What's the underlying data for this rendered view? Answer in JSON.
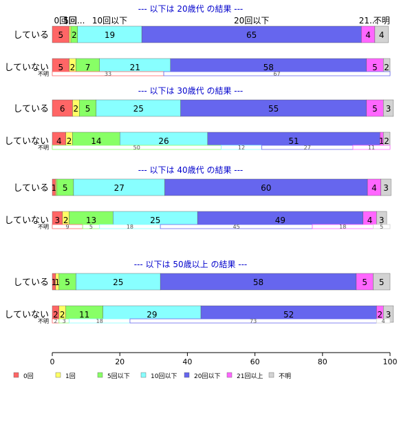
{
  "chart_data": {
    "type": "bar",
    "orientation": "horizontal",
    "stacked": true,
    "xlim": [
      0,
      100
    ],
    "x_ticks": [
      0,
      20,
      40,
      60,
      80,
      100
    ],
    "title": "",
    "xlabel": "",
    "ylabel": "",
    "categories": [
      "0回",
      "1回",
      "5回以下",
      "10回以下",
      "20回以下",
      "21回以上",
      "不明"
    ],
    "colors": [
      "#ff6666",
      "#ffff66",
      "#88ff66",
      "#88ffff",
      "#6666ee",
      "#ff66ff",
      "#d3d3d3"
    ],
    "legend_position": "bottom",
    "top_labels": [
      "0回",
      "1回",
      "5回...",
      "10回以下",
      "20回以下",
      "21...",
      "不明"
    ],
    "panels": [
      {
        "title": "--- 以下は 20歳代 の結果 ---",
        "rows": [
          {
            "label": "している",
            "values": [
              5,
              0.5,
              2,
              19,
              65,
              4,
              4
            ],
            "labels": [
              "5",
              "",
              "2",
              "19",
              "65",
              "4",
              "4"
            ]
          },
          {
            "label": "していない",
            "values": [
              5,
              2,
              7,
              21,
              58,
              5,
              2
            ],
            "labels": [
              "5",
              "2",
              "7",
              "21",
              "58",
              "5",
              "2"
            ]
          }
        ],
        "unknown": {
          "label": "不明",
          "values": [
            33,
            67
          ],
          "colors": [
            "#ff6666",
            "#6666ee"
          ],
          "labels": [
            "33",
            "67"
          ]
        }
      },
      {
        "title": "--- 以下は 30歳代 の結果 ---",
        "rows": [
          {
            "label": "している",
            "values": [
              6,
              2,
              5,
              25,
              55,
              5,
              3
            ],
            "labels": [
              "6",
              "2",
              "5",
              "25",
              "55",
              "5",
              "3"
            ]
          },
          {
            "label": "していない",
            "values": [
              4,
              2,
              14,
              26,
              51,
              1,
              2
            ],
            "labels": [
              "4",
              "2",
              "14",
              "26",
              "51",
              "1",
              "2"
            ]
          }
        ],
        "unknown": {
          "label": "不明",
          "values": [
            50,
            12,
            27,
            11
          ],
          "colors": [
            "#88ff66",
            "#88ffff",
            "#6666ee",
            "#ff66ff"
          ],
          "labels": [
            "50",
            "12",
            "27",
            "11"
          ]
        }
      },
      {
        "title": "--- 以下は 40歳代 の結果 ---",
        "rows": [
          {
            "label": "している",
            "values": [
              1,
              0.3,
              5,
              27,
              60,
              4,
              3
            ],
            "labels": [
              "1",
              "",
              "5",
              "27",
              "60",
              "4",
              "3"
            ]
          },
          {
            "label": "していない",
            "values": [
              3,
              2,
              13,
              25,
              49,
              4,
              3
            ],
            "labels": [
              "3",
              "2",
              "13",
              "25",
              "49",
              "4",
              "3"
            ]
          }
        ],
        "unknown": {
          "label": "不明",
          "values": [
            9,
            5,
            18,
            45,
            18,
            5
          ],
          "colors": [
            "#ff6666",
            "#88ff66",
            "#88ffff",
            "#6666ee",
            "#ff66ff",
            "#d3d3d3"
          ],
          "labels": [
            "9",
            "5",
            "18",
            "45",
            "18",
            "5"
          ]
        }
      },
      {
        "title": "--- 以下は 50歳以上 の結果 ---",
        "rows": [
          {
            "label": "している",
            "values": [
              1,
              1,
              5,
              25,
              58,
              5,
              5
            ],
            "labels": [
              "1",
              "1",
              "5",
              "25",
              "58",
              "5",
              "5"
            ]
          },
          {
            "label": "していない",
            "values": [
              2,
              2,
              11,
              29,
              52,
              2,
              3
            ],
            "labels": [
              "2",
              "2",
              "11",
              "29",
              "52",
              "2",
              "3"
            ]
          }
        ],
        "unknown": {
          "label": "不明",
          "values": [
            2,
            3,
            18,
            73,
            4
          ],
          "colors": [
            "#ff6666",
            "#88ff66",
            "#88ffff",
            "#6666ee",
            "#d3d3d3"
          ],
          "labels": [
            "2",
            "3",
            "18",
            "73",
            "4"
          ]
        }
      }
    ]
  }
}
